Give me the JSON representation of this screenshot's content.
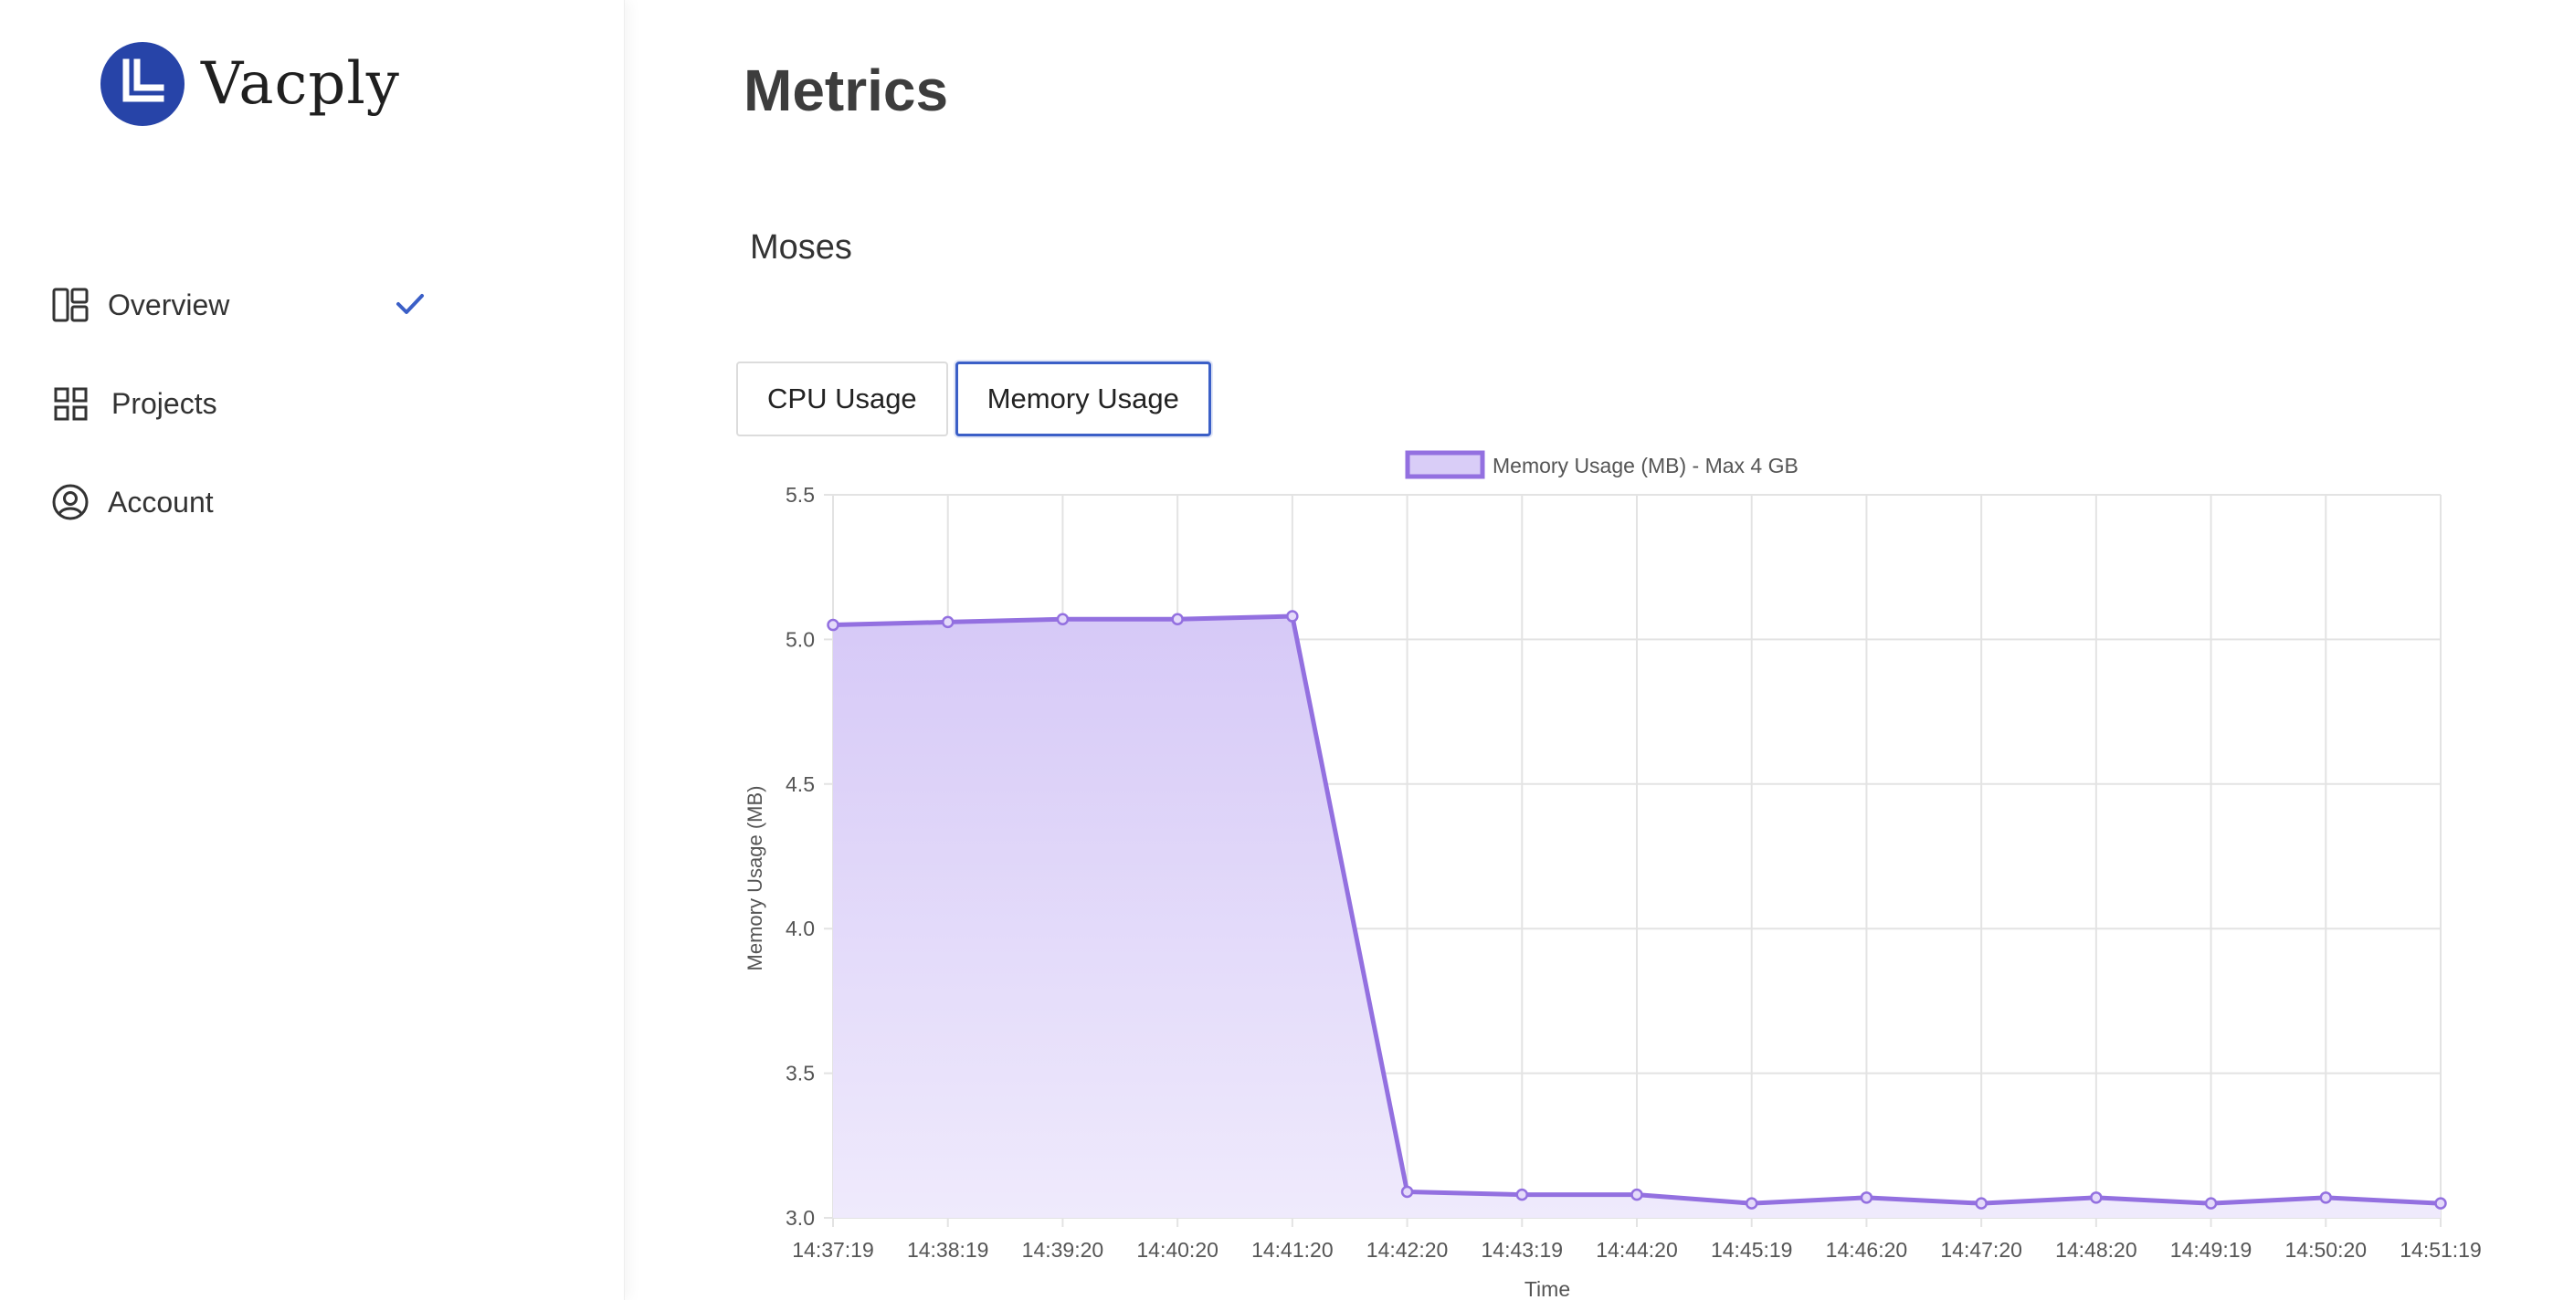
{
  "brand": {
    "name": "Vacply",
    "logo_color": "#2744a8"
  },
  "sidebar": {
    "items": [
      {
        "label": "Overview",
        "icon": "dashboard-icon",
        "checked": true
      },
      {
        "label": "Projects",
        "icon": "grid-icon",
        "checked": false
      },
      {
        "label": "Account",
        "icon": "user-circle-icon",
        "checked": false
      }
    ]
  },
  "main": {
    "title": "Metrics",
    "project": "Moses",
    "tabs": [
      {
        "label": "CPU Usage",
        "active": false
      },
      {
        "label": "Memory Usage",
        "active": true
      }
    ]
  },
  "colors": {
    "accent": "#3b5fc7",
    "series_line": "#9370e0",
    "series_fill": "#d9cdf7"
  },
  "chart_data": {
    "type": "line",
    "legend": "Memory Usage (MB) - Max 4 GB",
    "legend_position": "top-center",
    "xlabel": "Time",
    "ylabel": "Memory Usage (MB)",
    "ylim": [
      3.0,
      5.5
    ],
    "yticks": [
      "5.5",
      "5.0",
      "4.5",
      "4.0",
      "3.5",
      "3.0"
    ],
    "grid": true,
    "categories": [
      "14:37:19",
      "14:38:19",
      "14:39:20",
      "14:40:20",
      "14:41:20",
      "14:42:20",
      "14:43:19",
      "14:44:20",
      "14:45:19",
      "14:46:20",
      "14:47:20",
      "14:48:20",
      "14:49:19",
      "14:50:20",
      "14:51:19"
    ],
    "series": [
      {
        "name": "Memory Usage (MB) - Max 4 GB",
        "values": [
          5.05,
          5.06,
          5.07,
          5.07,
          5.08,
          3.09,
          3.08,
          3.08,
          3.05,
          3.07,
          3.05,
          3.07,
          3.05,
          3.07,
          3.05
        ]
      }
    ]
  }
}
